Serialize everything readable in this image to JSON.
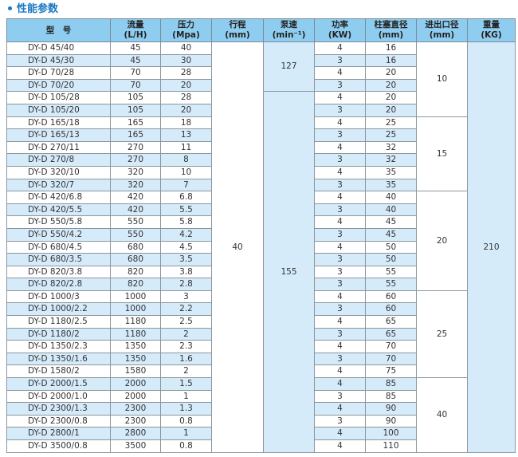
{
  "section_title": "性能参数",
  "headers": [
    {
      "l1": "型　号",
      "l2": ""
    },
    {
      "l1": "流量",
      "l2": "(L/H)"
    },
    {
      "l1": "压力",
      "l2": "(Mpa)"
    },
    {
      "l1": "行程",
      "l2": "(mm)"
    },
    {
      "l1": "泵速",
      "l2": "(min⁻¹)"
    },
    {
      "l1": "功率",
      "l2": "(KW)"
    },
    {
      "l1": "柱塞直径",
      "l2": "(mm)"
    },
    {
      "l1": "进出口径",
      "l2": "(mm)"
    },
    {
      "l1": "重量",
      "l2": "(KG)"
    }
  ],
  "rows": [
    [
      "DY-D 45/40",
      "45",
      "40",
      "4",
      "16"
    ],
    [
      "DY-D 45/30",
      "45",
      "30",
      "3",
      "16"
    ],
    [
      "DY-D 70/28",
      "70",
      "28",
      "4",
      "20"
    ],
    [
      "DY-D 70/20",
      "70",
      "20",
      "3",
      "20"
    ],
    [
      "DY-D 105/28",
      "105",
      "28",
      "4",
      "20"
    ],
    [
      "DY-D 105/20",
      "105",
      "20",
      "3",
      "20"
    ],
    [
      "DY-D 165/18",
      "165",
      "18",
      "4",
      "25"
    ],
    [
      "DY-D 165/13",
      "165",
      "13",
      "3",
      "25"
    ],
    [
      "DY-D 270/11",
      "270",
      "11",
      "4",
      "32"
    ],
    [
      "DY-D 270/8",
      "270",
      "8",
      "3",
      "32"
    ],
    [
      "DY-D 320/10",
      "320",
      "10",
      "4",
      "35"
    ],
    [
      "DY-D 320/7",
      "320",
      "7",
      "3",
      "35"
    ],
    [
      "DY-D 420/6.8",
      "420",
      "6.8",
      "4",
      "40"
    ],
    [
      "DY-D 420/5.5",
      "420",
      "5.5",
      "3",
      "40"
    ],
    [
      "DY-D 550/5.8",
      "550",
      "5.8",
      "4",
      "45"
    ],
    [
      "DY-D 550/4.2",
      "550",
      "4.2",
      "3",
      "45"
    ],
    [
      "DY-D 680/4.5",
      "680",
      "4.5",
      "4",
      "50"
    ],
    [
      "DY-D 680/3.5",
      "680",
      "3.5",
      "3",
      "50"
    ],
    [
      "DY-D 820/3.8",
      "820",
      "3.8",
      "3",
      "55"
    ],
    [
      "DY-D 820/2.8",
      "820",
      "2.8",
      "3",
      "55"
    ],
    [
      "DY-D 1000/3",
      "1000",
      "3",
      "4",
      "60"
    ],
    [
      "DY-D 1000/2.2",
      "1000",
      "2.2",
      "3",
      "60"
    ],
    [
      "DY-D 1180/2.5",
      "1180",
      "2.5",
      "4",
      "65"
    ],
    [
      "DY-D 1180/2",
      "1180",
      "2",
      "3",
      "65"
    ],
    [
      "DY-D 1350/2.3",
      "1350",
      "2.3",
      "4",
      "70"
    ],
    [
      "DY-D 1350/1.6",
      "1350",
      "1.6",
      "3",
      "70"
    ],
    [
      "DY-D 1580/2",
      "1580",
      "2",
      "4",
      "75"
    ],
    [
      "DY-D 2000/1.5",
      "2000",
      "1.5",
      "4",
      "85"
    ],
    [
      "DY-D 2000/1.0",
      "2000",
      "1",
      "3",
      "85"
    ],
    [
      "DY-D 2300/1.3",
      "2300",
      "1.3",
      "4",
      "90"
    ],
    [
      "DY-D 2300/0.8",
      "2300",
      "0.8",
      "3",
      "90"
    ],
    [
      "DY-D 2800/1",
      "2800",
      "1",
      "4",
      "100"
    ],
    [
      "DY-D 3500/0.8",
      "3500",
      "0.8",
      "4",
      "110"
    ]
  ],
  "stroke": [
    {
      "value": "40",
      "rows": 33
    }
  ],
  "pump_speed": [
    {
      "value": "127",
      "rows": 4
    },
    {
      "value": "155",
      "rows": 29
    }
  ],
  "port_diameter": [
    {
      "value": "10",
      "rows": 6
    },
    {
      "value": "15",
      "rows": 6
    },
    {
      "value": "20",
      "rows": 8
    },
    {
      "value": "25",
      "rows": 7
    },
    {
      "value": "40",
      "rows": 6
    }
  ],
  "weight": [
    {
      "value": "210",
      "rows": 33
    }
  ],
  "colors": {
    "header": "#8fcdf0",
    "alt_row": "#d6ebfa",
    "title": "#1a78c2"
  }
}
